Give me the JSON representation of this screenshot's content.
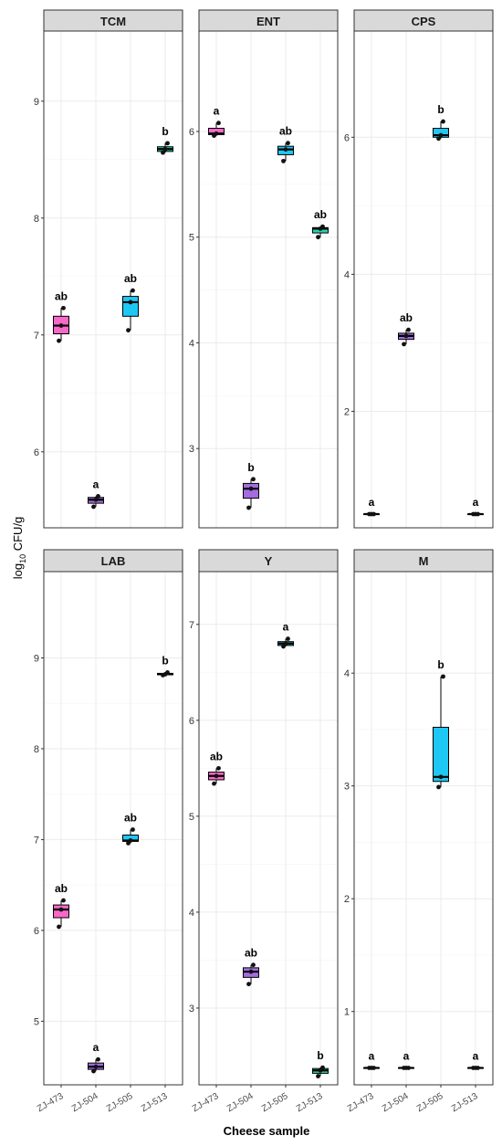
{
  "chart_data": {
    "type": "box",
    "xlabel": "Cheese sample",
    "ylabel_main": "log",
    "ylabel_sub": "10",
    "ylabel_rest": " CFU/g",
    "categories": [
      "ZJ-473",
      "ZJ-504",
      "ZJ-505",
      "ZJ-513"
    ],
    "fills": [
      "#F768C8",
      "#A46CE0",
      "#1EC8F4",
      "#21D6A8"
    ],
    "panels": [
      {
        "title": "TCM",
        "ylim": [
          5.35,
          9.6
        ],
        "ticks": [
          6,
          7,
          8,
          9
        ],
        "boxes": [
          {
            "min": 6.95,
            "q1": 7.01,
            "median": 7.08,
            "q3": 7.16,
            "max": 7.23,
            "points": [
              6.95,
              7.08,
              7.23
            ],
            "label": "ab"
          },
          {
            "min": 5.53,
            "q1": 5.56,
            "median": 5.59,
            "q3": 5.61,
            "max": 5.62,
            "points": [
              5.53,
              5.59,
              5.62
            ],
            "label": "a"
          },
          {
            "min": 7.04,
            "q1": 7.16,
            "median": 7.28,
            "q3": 7.33,
            "max": 7.38,
            "points": [
              7.04,
              7.28,
              7.38
            ],
            "label": "ab"
          },
          {
            "min": 8.56,
            "q1": 8.57,
            "median": 8.59,
            "q3": 8.61,
            "max": 8.64,
            "points": [
              8.56,
              8.59,
              8.64
            ],
            "label": "b"
          }
        ]
      },
      {
        "title": "ENT",
        "ylim": [
          2.25,
          6.95
        ],
        "ticks": [
          3,
          4,
          5,
          6
        ],
        "boxes": [
          {
            "min": 5.96,
            "q1": 5.97,
            "median": 5.98,
            "q3": 6.03,
            "max": 6.08,
            "points": [
              5.96,
              5.98,
              6.08
            ],
            "label": "a"
          },
          {
            "min": 2.44,
            "q1": 2.53,
            "median": 2.62,
            "q3": 2.67,
            "max": 2.71,
            "points": [
              2.44,
              2.62,
              2.71
            ],
            "label": "b"
          },
          {
            "min": 5.72,
            "q1": 5.78,
            "median": 5.83,
            "q3": 5.86,
            "max": 5.89,
            "points": [
              5.72,
              5.83,
              5.89
            ],
            "label": "ab"
          },
          {
            "min": 5.0,
            "q1": 5.04,
            "median": 5.08,
            "q3": 5.09,
            "max": 5.1,
            "points": [
              5.0,
              5.08,
              5.1
            ],
            "label": "ab"
          }
        ]
      },
      {
        "title": "CPS",
        "ylim": [
          0.3,
          7.55
        ],
        "ticks": [
          2,
          4,
          6
        ],
        "boxes": [
          {
            "min": 0.5,
            "q1": 0.5,
            "median": 0.5,
            "q3": 0.5,
            "max": 0.5,
            "points": [
              0.5,
              0.5,
              0.5
            ],
            "label": "a"
          },
          {
            "min": 2.98,
            "q1": 3.05,
            "median": 3.1,
            "q3": 3.14,
            "max": 3.19,
            "points": [
              2.98,
              3.1,
              3.19
            ],
            "label": "ab"
          },
          {
            "min": 5.98,
            "q1": 6.0,
            "median": 6.03,
            "q3": 6.13,
            "max": 6.23,
            "points": [
              5.98,
              6.03,
              6.23
            ],
            "label": "b"
          },
          {
            "min": 0.5,
            "q1": 0.5,
            "median": 0.5,
            "q3": 0.5,
            "max": 0.5,
            "points": [
              0.5,
              0.5,
              0.5
            ],
            "label": "a"
          }
        ]
      },
      {
        "title": "LAB",
        "ylim": [
          4.3,
          9.95
        ],
        "ticks": [
          5,
          6,
          7,
          8,
          9
        ],
        "boxes": [
          {
            "min": 6.04,
            "q1": 6.14,
            "median": 6.23,
            "q3": 6.28,
            "max": 6.33,
            "points": [
              6.04,
              6.23,
              6.33
            ],
            "label": "ab"
          },
          {
            "min": 4.45,
            "q1": 4.47,
            "median": 4.5,
            "q3": 4.54,
            "max": 4.58,
            "points": [
              4.45,
              4.5,
              4.58
            ],
            "label": "a"
          },
          {
            "min": 6.96,
            "q1": 6.98,
            "median": 6.99,
            "q3": 7.05,
            "max": 7.11,
            "points": [
              6.96,
              6.99,
              7.11
            ],
            "label": "ab"
          },
          {
            "min": 8.81,
            "q1": 8.815,
            "median": 8.82,
            "q3": 8.83,
            "max": 8.84,
            "points": [
              8.81,
              8.82,
              8.84
            ],
            "label": "b"
          }
        ]
      },
      {
        "title": "Y",
        "ylim": [
          2.2,
          7.55
        ],
        "ticks": [
          3,
          4,
          5,
          6,
          7
        ],
        "boxes": [
          {
            "min": 5.34,
            "q1": 5.38,
            "median": 5.42,
            "q3": 5.46,
            "max": 5.5,
            "points": [
              5.34,
              5.42,
              5.5
            ],
            "label": "ab"
          },
          {
            "min": 3.25,
            "q1": 3.32,
            "median": 3.38,
            "q3": 3.42,
            "max": 3.45,
            "points": [
              3.25,
              3.38,
              3.45
            ],
            "label": "ab"
          },
          {
            "min": 6.77,
            "q1": 6.78,
            "median": 6.8,
            "q3": 6.82,
            "max": 6.85,
            "points": [
              6.77,
              6.8,
              6.85
            ],
            "label": "a"
          },
          {
            "min": 2.29,
            "q1": 2.32,
            "median": 2.35,
            "q3": 2.37,
            "max": 2.38,
            "points": [
              2.29,
              2.35,
              2.38
            ],
            "label": "b"
          }
        ]
      },
      {
        "title": "M",
        "ylim": [
          0.35,
          4.9
        ],
        "ticks": [
          1,
          2,
          3,
          4
        ],
        "boxes": [
          {
            "min": 0.5,
            "q1": 0.5,
            "median": 0.5,
            "q3": 0.5,
            "max": 0.5,
            "points": [
              0.5,
              0.5,
              0.5
            ],
            "label": "a"
          },
          {
            "min": 0.5,
            "q1": 0.5,
            "median": 0.5,
            "q3": 0.5,
            "max": 0.5,
            "points": [
              0.5,
              0.5,
              0.5
            ],
            "label": "a"
          },
          {
            "min": 2.99,
            "q1": 3.04,
            "median": 3.08,
            "q3": 3.52,
            "max": 3.97,
            "points": [
              2.99,
              3.08,
              3.97
            ],
            "label": "b"
          },
          {
            "min": 0.5,
            "q1": 0.5,
            "median": 0.5,
            "q3": 0.5,
            "max": 0.5,
            "points": [
              0.5,
              0.5,
              0.5
            ],
            "label": "a"
          }
        ]
      }
    ],
    "grid": true,
    "legend": "none"
  }
}
